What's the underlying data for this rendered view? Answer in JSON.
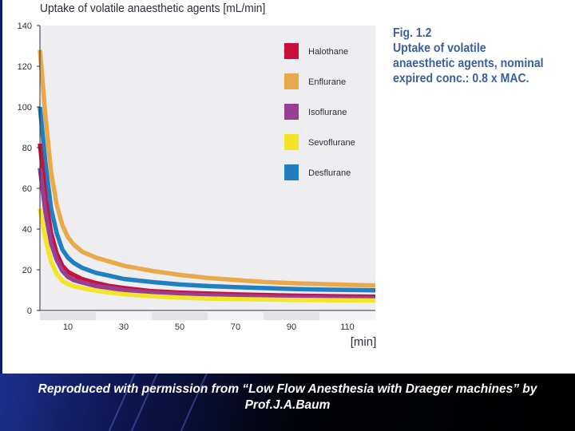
{
  "chart_data": {
    "type": "line",
    "title": "Uptake of volatile anaesthetic agents [mL/min]",
    "xlabel": "[min]",
    "ylabel": "",
    "xlim": [
      0,
      120
    ],
    "ylim": [
      0,
      140
    ],
    "yticks": [
      0,
      20,
      40,
      60,
      80,
      100,
      120,
      140
    ],
    "xticks": [
      10,
      30,
      50,
      70,
      90,
      110
    ],
    "x_grid_bands": [
      0,
      20,
      40,
      60,
      80,
      100,
      120
    ],
    "grid": false,
    "legend_position": "top-right",
    "x": [
      0,
      2,
      4,
      6,
      8,
      10,
      12,
      15,
      20,
      25,
      30,
      40,
      50,
      60,
      70,
      80,
      90,
      100,
      110,
      120
    ],
    "series": [
      {
        "name": "Halothane",
        "color": "#c8103c",
        "values": [
          82,
          55,
          38,
          28,
          22,
          19,
          17.5,
          15.5,
          13.5,
          12,
          11,
          9.5,
          8.8,
          8.3,
          7.9,
          7.6,
          7.3,
          7.1,
          6.9,
          6.8
        ]
      },
      {
        "name": "Enflurane",
        "color": "#e9a94b",
        "values": [
          128,
          95,
          68,
          52,
          42,
          36,
          32.5,
          29,
          26,
          24,
          22,
          19.5,
          17.5,
          16,
          15,
          14,
          13.4,
          13,
          12.6,
          12.3
        ]
      },
      {
        "name": "Isoflurane",
        "color": "#993f93",
        "values": [
          70,
          48,
          33,
          25,
          19.5,
          16.5,
          15,
          13.8,
          12,
          11,
          10,
          8.8,
          8,
          7.5,
          7.1,
          6.8,
          6.5,
          6.3,
          6.1,
          6
        ]
      },
      {
        "name": "Sevoflurane",
        "color": "#f2e428",
        "values": [
          50,
          35,
          24,
          18,
          14.5,
          13,
          12,
          11,
          9.8,
          8.8,
          8,
          7,
          6.3,
          5.9,
          5.6,
          5.4,
          5.2,
          5.1,
          5,
          4.9
        ]
      },
      {
        "name": "Desflurane",
        "color": "#1f7fc0",
        "values": [
          100,
          72,
          50,
          38,
          30,
          26,
          23.5,
          21,
          18.5,
          17,
          15.5,
          14,
          12.8,
          12,
          11.5,
          11,
          10.6,
          10.3,
          10.1,
          9.9
        ]
      }
    ]
  },
  "figure": {
    "number": "Fig. 1.2",
    "caption": "Uptake of volatile anaesthetic agents, nominal expired conc.: 0.8 x MAC."
  },
  "footer": {
    "text": "Reproduced with permission from “Low Flow Anesthesia with Draeger machines” by Prof.J.A.Baum"
  }
}
